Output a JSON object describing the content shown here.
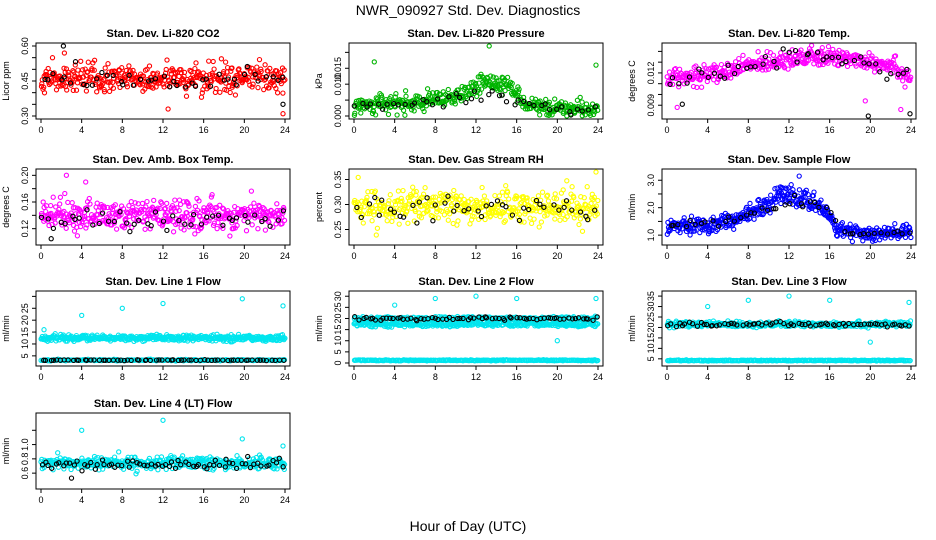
{
  "figure": {
    "title": "NWR_090927  Std. Dev. Diagnostics",
    "xlabel": "Hour of Day (UTC)"
  },
  "chart_data": [
    {
      "type": "scatter",
      "title": "Stan. Dev. Li-820 CO2",
      "ylabel": "Licor ppm",
      "xlim": [
        0,
        24
      ],
      "ylim": [
        0.3,
        0.6
      ],
      "xticks": [
        "0",
        "4",
        "8",
        "12",
        "16",
        "20",
        "24"
      ],
      "yticks": [
        0.3,
        0.35,
        0.4,
        0.45,
        0.5,
        0.55,
        0.6
      ],
      "ytick_labels": [
        "0.30",
        "",
        "",
        "0.45",
        "",
        "",
        "0.60"
      ],
      "series": [
        {
          "color": "#ff0000",
          "center": 0.46,
          "spread": 0.055,
          "n": 420,
          "outliers": [
            [
              12.5,
              0.33
            ],
            [
              23.8,
              0.31
            ],
            [
              2.3,
              0.57
            ]
          ]
        },
        {
          "color": "#000000",
          "center": 0.45,
          "spread": 0.045,
          "n": 45,
          "outliers": [
            [
              2.2,
              0.6
            ],
            [
              23.8,
              0.35
            ]
          ]
        }
      ]
    },
    {
      "type": "scatter",
      "title": "Stan. Dev. Li-820 Pressure",
      "ylabel": "kPa",
      "xlim": [
        0,
        24
      ],
      "ylim": [
        0,
        0.022
      ],
      "xticks": [
        "0",
        "4",
        "8",
        "12",
        "16",
        "20",
        "24"
      ],
      "yticks": [
        0,
        0.005,
        0.01,
        0.015,
        0.02
      ],
      "ytick_labels": [
        "0.000",
        "",
        "0.010",
        "0.015",
        ""
      ],
      "series": [
        {
          "color": "#00b400",
          "profile": [
            [
              0,
              0.0035
            ],
            [
              6,
              0.004
            ],
            [
              10,
              0.0055
            ],
            [
              13,
              0.011
            ],
            [
              15,
              0.01
            ],
            [
              17,
              0.004
            ],
            [
              19,
              0.002
            ],
            [
              24,
              0.002
            ]
          ],
          "spread": 0.0025,
          "n": 420,
          "outliers": [
            [
              13.3,
              0.022
            ],
            [
              2,
              0.017
            ],
            [
              23.8,
              0.016
            ]
          ]
        },
        {
          "color": "#000000",
          "profile": [
            [
              0,
              0.0035
            ],
            [
              8,
              0.0045
            ],
            [
              14,
              0.007
            ],
            [
              18,
              0.003
            ],
            [
              24,
              0.002
            ]
          ],
          "spread": 0.0015,
          "n": 45,
          "outliers": []
        }
      ]
    },
    {
      "type": "scatter",
      "title": "Stan. Dev. Li-820 Temp.",
      "ylabel": "degrees C",
      "xlim": [
        0,
        24
      ],
      "ylim": [
        0.008,
        0.0145
      ],
      "xticks": [
        "0",
        "4",
        "8",
        "12",
        "16",
        "20",
        "24"
      ],
      "yticks": [
        0.009,
        0.01,
        0.011,
        0.012,
        0.013,
        0.014
      ],
      "ytick_labels": [
        "0.009",
        "",
        "",
        "0.012",
        "",
        ""
      ],
      "series": [
        {
          "color": "#ff00ff",
          "profile": [
            [
              0,
              0.0115
            ],
            [
              4,
              0.0118
            ],
            [
              6,
              0.0122
            ],
            [
              8,
              0.0127
            ],
            [
              12,
              0.0134
            ],
            [
              18,
              0.0134
            ],
            [
              22,
              0.0128
            ],
            [
              24,
              0.0115
            ]
          ],
          "spread": 0.0008,
          "n": 420,
          "outliers": [
            [
              1,
              0.0088
            ],
            [
              23,
              0.0086
            ],
            [
              19.5,
              0.0094
            ]
          ]
        },
        {
          "color": "#000000",
          "profile": [
            [
              0,
              0.0112
            ],
            [
              8,
              0.0125
            ],
            [
              12,
              0.0134
            ],
            [
              18,
              0.0132
            ],
            [
              24,
              0.0115
            ]
          ],
          "spread": 0.0008,
          "n": 45,
          "outliers": [
            [
              19.8,
              0.008
            ],
            [
              23.9,
              0.0082
            ],
            [
              1.5,
              0.0091
            ]
          ]
        }
      ]
    },
    {
      "type": "scatter",
      "title": "Stan. Dev. Amb. Box Temp.",
      "ylabel": "degrees C",
      "xlim": [
        0,
        24
      ],
      "ylim": [
        0.1,
        0.205
      ],
      "xticks": [
        "0",
        "4",
        "8",
        "12",
        "16",
        "20",
        "24"
      ],
      "yticks": [
        0.12,
        0.14,
        0.16,
        0.18,
        0.2
      ],
      "ytick_labels": [
        "0.12",
        "",
        "0.16",
        "",
        "0.20"
      ],
      "series": [
        {
          "color": "#ff00ff",
          "center": 0.14,
          "spread": 0.02,
          "n": 420,
          "outliers": [
            [
              2.5,
              0.2
            ],
            [
              4.4,
              0.19
            ]
          ]
        },
        {
          "color": "#000000",
          "center": 0.132,
          "spread": 0.014,
          "n": 45,
          "outliers": [
            [
              1,
              0.105
            ]
          ]
        }
      ]
    },
    {
      "type": "scatter",
      "title": "Stan. Dev. Gas Stream RH",
      "ylabel": "percent",
      "xlim": [
        0,
        24
      ],
      "ylim": [
        0.225,
        0.365
      ],
      "xticks": [
        "0",
        "4",
        "8",
        "12",
        "16",
        "20",
        "24"
      ],
      "yticks": [
        0.25,
        0.3,
        0.35
      ],
      "ytick_labels": [
        "0.25",
        "0.30",
        "0.35"
      ],
      "series": [
        {
          "color": "#ffff00",
          "center": 0.295,
          "spread": 0.03,
          "n": 420,
          "outliers": [
            [
              23.8,
              0.365
            ]
          ]
        },
        {
          "color": "#000000",
          "center": 0.292,
          "spread": 0.027,
          "n": 45,
          "outliers": []
        }
      ]
    },
    {
      "type": "scatter",
      "title": "Stan. Dev. Sample Flow",
      "ylabel": "ml/min",
      "xlim": [
        0,
        24
      ],
      "ylim": [
        0.75,
        3.3
      ],
      "xticks": [
        "0",
        "4",
        "8",
        "12",
        "16",
        "20",
        "24"
      ],
      "yticks": [
        1.0,
        1.5,
        2.0,
        2.5,
        3.0
      ],
      "ytick_labels": [
        "1.0",
        "",
        "2.0",
        "",
        "3.0"
      ],
      "series": [
        {
          "color": "#0000ff",
          "profile": [
            [
              0,
              1.4
            ],
            [
              4,
              1.35
            ],
            [
              7,
              1.6
            ],
            [
              10,
              2.1
            ],
            [
              11,
              2.6
            ],
            [
              13,
              2.3
            ],
            [
              15,
              2.1
            ],
            [
              17,
              1.2
            ],
            [
              19,
              1.0
            ],
            [
              24,
              1.1
            ]
          ],
          "spread": 0.28,
          "n": 460,
          "outliers": [
            [
              13,
              3.15
            ]
          ]
        },
        {
          "color": "#000000",
          "profile": [
            [
              0,
              1.35
            ],
            [
              6,
              1.45
            ],
            [
              10,
              2.05
            ],
            [
              13,
              2.2
            ],
            [
              16,
              1.9
            ],
            [
              18,
              1.1
            ],
            [
              24,
              1.1
            ]
          ],
          "spread": 0.2,
          "n": 45,
          "outliers": []
        }
      ]
    },
    {
      "type": "scatter",
      "title": "Stan. Dev. Line 1 Flow",
      "ylabel": "ml/min",
      "xlim": [
        0,
        24
      ],
      "ylim": [
        2,
        31
      ],
      "xticks": [
        "0",
        "4",
        "8",
        "12",
        "16",
        "20",
        "24"
      ],
      "yticks": [
        5,
        10,
        15,
        20,
        25,
        30
      ],
      "ytick_labels": [
        "5",
        "10",
        "15",
        "20",
        "25",
        ""
      ],
      "series": [
        {
          "color": "#00e5ee",
          "center": 12.5,
          "spread": 1.1,
          "n": 440,
          "outliers": [
            [
              0.3,
              16
            ],
            [
              4,
              22
            ],
            [
              8,
              25
            ],
            [
              12,
              27
            ],
            [
              19.8,
              29
            ],
            [
              23.8,
              26
            ]
          ]
        },
        {
          "color": "#00e5ee",
          "center": 3.2,
          "spread": 0.25,
          "n": 240,
          "outliers": []
        },
        {
          "color": "#000000",
          "center": 3.2,
          "spread": 0.15,
          "n": 65,
          "outliers": []
        }
      ]
    },
    {
      "type": "scatter",
      "title": "Stan. Dev. Line 2 Flow",
      "ylabel": "ml/min",
      "xlim": [
        0,
        24
      ],
      "ylim": [
        0,
        31
      ],
      "xticks": [
        "0",
        "4",
        "8",
        "12",
        "16",
        "20",
        "24"
      ],
      "yticks": [
        0,
        5,
        10,
        15,
        20,
        25,
        30
      ],
      "ytick_labels": [
        "0",
        "5",
        "10",
        "15",
        "20",
        "25",
        "30"
      ],
      "series": [
        {
          "color": "#00e5ee",
          "center": 17.5,
          "spread": 1.1,
          "n": 380,
          "outliers": [
            [
              4,
              26
            ],
            [
              8,
              29
            ],
            [
              12,
              30
            ],
            [
              16,
              29
            ],
            [
              20,
              10
            ],
            [
              23.8,
              29
            ]
          ]
        },
        {
          "color": "#00e5ee",
          "center": 20.2,
          "spread": 0.6,
          "n": 200,
          "outliers": []
        },
        {
          "color": "#00e5ee",
          "center": 1.2,
          "spread": 0.2,
          "n": 240,
          "outliers": []
        },
        {
          "color": "#000000",
          "center": 20,
          "spread": 0.7,
          "n": 70,
          "outliers": []
        }
      ]
    },
    {
      "type": "scatter",
      "title": "Stan. Dev. Line 3 Flow",
      "ylabel": "ml/min",
      "xlim": [
        0,
        24
      ],
      "ylim": [
        3,
        36
      ],
      "xticks": [
        "0",
        "4",
        "8",
        "12",
        "16",
        "20",
        "24"
      ],
      "yticks": [
        5,
        10,
        15,
        20,
        25,
        30,
        35
      ],
      "ytick_labels": [
        "5",
        "10",
        "15",
        "20",
        "25",
        "30",
        "35"
      ],
      "series": [
        {
          "color": "#00e5ee",
          "center": 21.5,
          "spread": 1.2,
          "n": 440,
          "outliers": [
            [
              4,
              30
            ],
            [
              8,
              33
            ],
            [
              12,
              35
            ],
            [
              16,
              33
            ],
            [
              20,
              13
            ],
            [
              23.8,
              32
            ]
          ]
        },
        {
          "color": "#00e5ee",
          "center": 4.2,
          "spread": 0.2,
          "n": 240,
          "outliers": []
        },
        {
          "color": "#000000",
          "center": 21.5,
          "spread": 0.8,
          "n": 70,
          "outliers": []
        }
      ]
    },
    {
      "type": "scatter",
      "title": "Stan. Dev. Line 4 (LT) Flow",
      "ylabel": "ml/min",
      "xlim": [
        0,
        24
      ],
      "ylim": [
        0.42,
        1.4
      ],
      "xticks": [
        "0",
        "4",
        "8",
        "12",
        "16",
        "20",
        "24"
      ],
      "yticks": [
        0.6,
        0.8,
        1.0,
        1.2
      ],
      "ytick_labels": [
        "0.6",
        "0.8",
        "1.0",
        ""
      ],
      "series": [
        {
          "color": "#00e5ee",
          "center": 0.74,
          "spread": 0.08,
          "n": 440,
          "outliers": [
            [
              4,
              1.2
            ],
            [
              12,
              1.34
            ],
            [
              19.8,
              1.08
            ],
            [
              23.8,
              0.98
            ]
          ]
        },
        {
          "color": "#000000",
          "center": 0.72,
          "spread": 0.065,
          "n": 70,
          "outliers": [
            [
              3,
              0.53
            ]
          ]
        }
      ]
    }
  ]
}
